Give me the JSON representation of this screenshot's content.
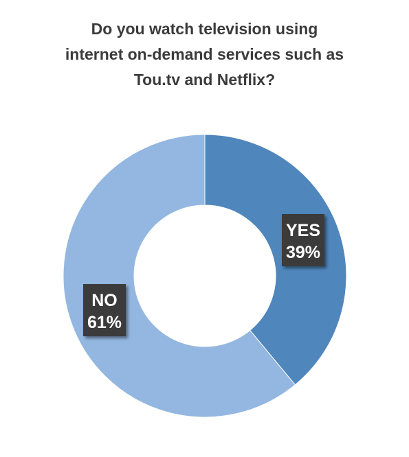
{
  "chart_data": {
    "type": "pie",
    "title_lines": [
      "Do you watch television using",
      "internet on-demand services such as",
      "Tou.tv and Netflix?"
    ],
    "categories": [
      "YES",
      "NO"
    ],
    "values": [
      39,
      61
    ],
    "value_labels": [
      "39%",
      "61%"
    ],
    "colors": [
      "#4f86bc",
      "#93b7e0"
    ],
    "label_box_color": "#3a3a3a",
    "legend": "none",
    "style": "donut"
  }
}
